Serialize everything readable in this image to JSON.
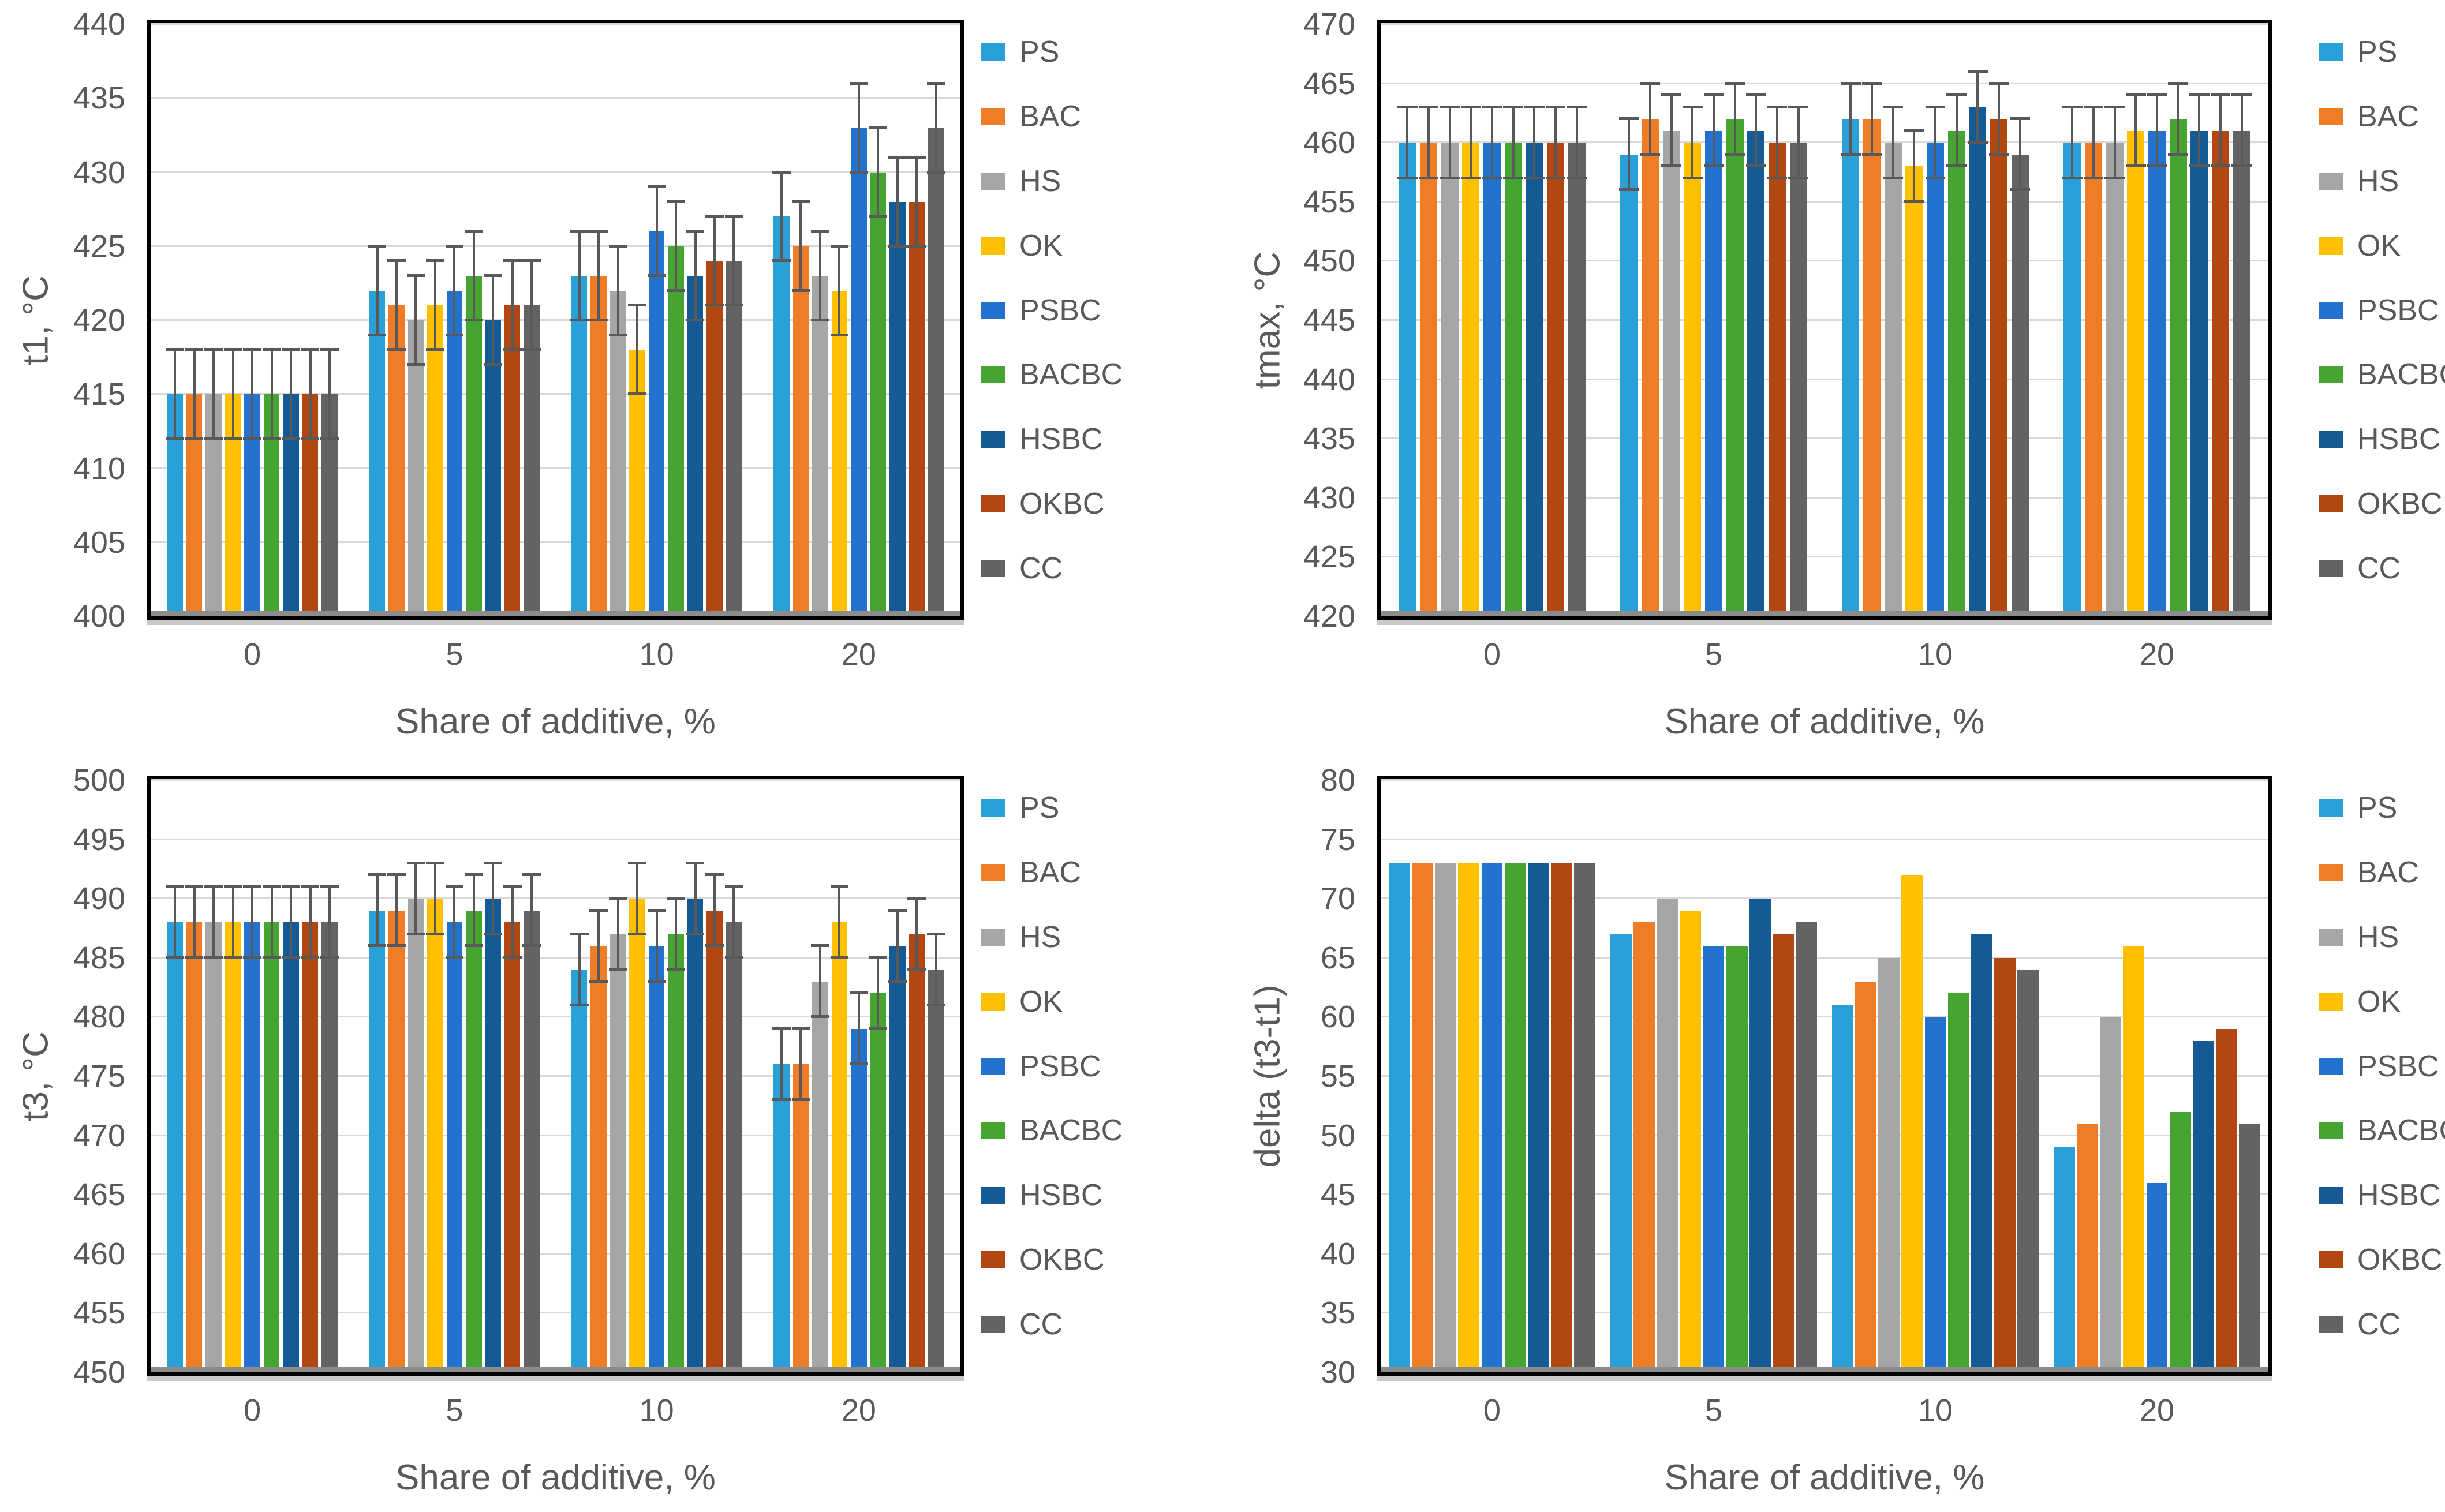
{
  "figure": {
    "x_axis_title": "Share of additive, %",
    "categories": [
      "0",
      "5",
      "10",
      "20"
    ],
    "series_names": [
      "PS",
      "BAC",
      "HS",
      "OK",
      "PSBC",
      "BACBC",
      "HSBC",
      "OKBC",
      "CC"
    ],
    "series_colors": {
      "PS": "#2A9FD8",
      "BAC": "#EF7D28",
      "HS": "#A6A6A6",
      "OK": "#FFC000",
      "PSBC": "#2272CE",
      "BACBC": "#46A430",
      "HSBC": "#145A94",
      "OKBC": "#B34712",
      "CC": "#636363"
    },
    "error_bar_color": "#595959",
    "text_color": "#595959",
    "gridline_color": "#D9D9D9"
  },
  "chart_data": [
    {
      "type": "bar",
      "position": "top-left",
      "ylabel": "t1, °C",
      "xlabel": "Share of additive, %",
      "ylim": [
        400,
        440
      ],
      "ystep": 5,
      "grid": true,
      "legend_position": "right",
      "error_bar": 3,
      "categories": [
        "0",
        "5",
        "10",
        "20"
      ],
      "series": [
        {
          "name": "PS",
          "values": [
            415,
            422,
            423,
            427
          ]
        },
        {
          "name": "BAC",
          "values": [
            415,
            421,
            423,
            425
          ]
        },
        {
          "name": "HS",
          "values": [
            415,
            420,
            422,
            423
          ]
        },
        {
          "name": "OK",
          "values": [
            415,
            421,
            418,
            422
          ]
        },
        {
          "name": "PSBC",
          "values": [
            415,
            422,
            426,
            433
          ]
        },
        {
          "name": "BACBC",
          "values": [
            415,
            423,
            425,
            430
          ]
        },
        {
          "name": "HSBC",
          "values": [
            415,
            420,
            423,
            428
          ]
        },
        {
          "name": "OKBC",
          "values": [
            415,
            421,
            424,
            428
          ]
        },
        {
          "name": "CC",
          "values": [
            415,
            421,
            424,
            433
          ]
        }
      ]
    },
    {
      "type": "bar",
      "position": "top-right",
      "ylabel": "tmax, °C",
      "xlabel": "Share of additive, %",
      "ylim": [
        420,
        470
      ],
      "ystep": 5,
      "grid": true,
      "legend_position": "right",
      "error_bar": 3,
      "categories": [
        "0",
        "5",
        "10",
        "20"
      ],
      "series": [
        {
          "name": "PS",
          "values": [
            460,
            459,
            462,
            460
          ]
        },
        {
          "name": "BAC",
          "values": [
            460,
            462,
            462,
            460
          ]
        },
        {
          "name": "HS",
          "values": [
            460,
            461,
            460,
            460
          ]
        },
        {
          "name": "OK",
          "values": [
            460,
            460,
            458,
            461
          ]
        },
        {
          "name": "PSBC",
          "values": [
            460,
            461,
            460,
            461
          ]
        },
        {
          "name": "BACBC",
          "values": [
            460,
            462,
            461,
            462
          ]
        },
        {
          "name": "HSBC",
          "values": [
            460,
            461,
            463,
            461
          ]
        },
        {
          "name": "OKBC",
          "values": [
            460,
            460,
            462,
            461
          ]
        },
        {
          "name": "CC",
          "values": [
            460,
            460,
            459,
            461
          ]
        }
      ]
    },
    {
      "type": "bar",
      "position": "bottom-left",
      "ylabel": "t3, °C",
      "xlabel": "Share of additive, %",
      "ylim": [
        450,
        500
      ],
      "ystep": 5,
      "grid": true,
      "legend_position": "right",
      "error_bar": 3,
      "categories": [
        "0",
        "5",
        "10",
        "20"
      ],
      "series": [
        {
          "name": "PS",
          "values": [
            488,
            489,
            484,
            476
          ]
        },
        {
          "name": "BAC",
          "values": [
            488,
            489,
            486,
            476
          ]
        },
        {
          "name": "HS",
          "values": [
            488,
            490,
            487,
            483
          ]
        },
        {
          "name": "OK",
          "values": [
            488,
            490,
            490,
            488
          ]
        },
        {
          "name": "PSBC",
          "values": [
            488,
            488,
            486,
            479
          ]
        },
        {
          "name": "BACBC",
          "values": [
            488,
            489,
            487,
            482
          ]
        },
        {
          "name": "HSBC",
          "values": [
            488,
            490,
            490,
            486
          ]
        },
        {
          "name": "OKBC",
          "values": [
            488,
            488,
            489,
            487
          ]
        },
        {
          "name": "CC",
          "values": [
            488,
            489,
            488,
            484
          ]
        }
      ]
    },
    {
      "type": "bar",
      "position": "bottom-right",
      "ylabel": "delta (t3-t1)",
      "xlabel": "Share of additive, %",
      "ylim": [
        30,
        80
      ],
      "ystep": 5,
      "grid": true,
      "legend_position": "right",
      "error_bar": null,
      "categories": [
        "0",
        "5",
        "10",
        "20"
      ],
      "series": [
        {
          "name": "PS",
          "values": [
            73,
            67,
            61,
            49
          ]
        },
        {
          "name": "BAC",
          "values": [
            73,
            68,
            63,
            51
          ]
        },
        {
          "name": "HS",
          "values": [
            73,
            70,
            65,
            60
          ]
        },
        {
          "name": "OK",
          "values": [
            73,
            69,
            72,
            66
          ]
        },
        {
          "name": "PSBC",
          "values": [
            73,
            66,
            60,
            46
          ]
        },
        {
          "name": "BACBC",
          "values": [
            73,
            66,
            62,
            52
          ]
        },
        {
          "name": "HSBC",
          "values": [
            73,
            70,
            67,
            58
          ]
        },
        {
          "name": "OKBC",
          "values": [
            73,
            67,
            65,
            59
          ]
        },
        {
          "name": "CC",
          "values": [
            73,
            68,
            64,
            51
          ]
        }
      ]
    }
  ]
}
